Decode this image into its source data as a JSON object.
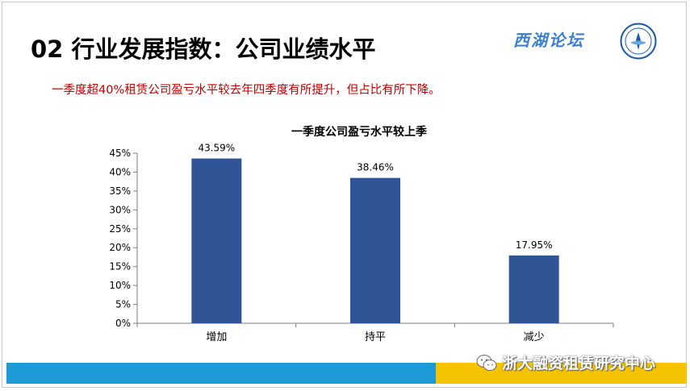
{
  "slide": {
    "title": "02 行业发展指数：公司业绩水平",
    "subtitle": "一季度超40%租赁公司盈亏水平较去年四季度有所提升，但占比有所下降。",
    "logo_text": "西湖论坛",
    "watermark": "浙大融资租赁研究中心",
    "colors": {
      "accent_blue": "#1e9bd7",
      "accent_yellow": "#f6c300",
      "subtitle_red": "#c00000"
    }
  },
  "chart_data": {
    "type": "bar",
    "title": "一季度公司盈亏水平较上季",
    "categories": [
      "增加",
      "持平",
      "减少"
    ],
    "values": [
      43.59,
      38.46,
      17.95
    ],
    "data_labels": [
      "43.59%",
      "38.46%",
      "17.95%"
    ],
    "ylim": [
      0,
      45
    ],
    "yticks": [
      "0%",
      "5%",
      "10%",
      "15%",
      "20%",
      "25%",
      "30%",
      "35%",
      "40%",
      "45%"
    ],
    "xlabel": "",
    "ylabel": "",
    "grid": false,
    "bar_color": "#2f5597"
  }
}
